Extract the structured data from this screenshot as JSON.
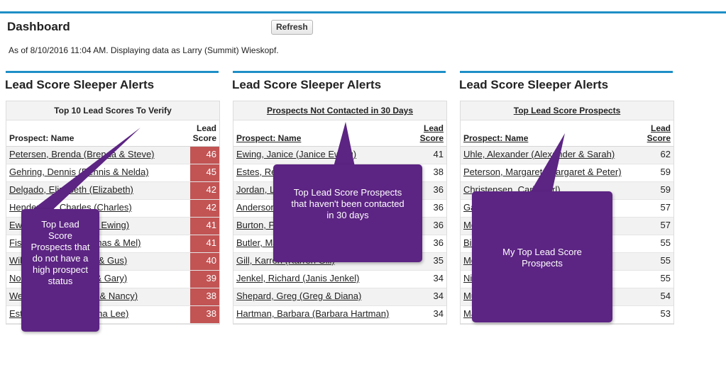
{
  "header": {
    "title": "Dashboard",
    "refresh_label": "Refresh",
    "as_of": "As of 8/10/2016 11:04 AM. Displaying data as Larry (Summit) Wieskopf."
  },
  "columns": [
    {
      "heading": "Lead Score Sleeper Alerts",
      "panel_title": "Top 10 Lead Scores To Verify",
      "name_header": "Prospect: Name",
      "score_header_1": "Lead",
      "score_header_2": "Score",
      "rows": [
        {
          "name": "Petersen, Brenda (Brenda & Steve)",
          "score": "46"
        },
        {
          "name": "Gehring, Dennis (Dennis & Nelda)",
          "score": "45"
        },
        {
          "name": "Delgado, Elizabeth (Elizabeth)",
          "score": "42"
        },
        {
          "name": "Henderson, Charles (Charles)",
          "score": "42"
        },
        {
          "name": "Ewing, Janice (Janice Ewing)",
          "score": "41"
        },
        {
          "name": "Fisher, Thomas (Thomas & Mel)",
          "score": "41"
        },
        {
          "name": "Wilson, Bruce (Bruce & Gus)",
          "score": "40"
        },
        {
          "name": "Norton, Linda (Linda & Gary)",
          "score": "39"
        },
        {
          "name": "Webster, Nancy (Tom & Nancy)",
          "score": "38"
        },
        {
          "name": "Estes, Rex (Rex & Lona Lee)",
          "score": "38"
        }
      ],
      "callout": "Top Lead Score Prospects that do not have a high prospect status"
    },
    {
      "heading": "Lead Score Sleeper Alerts",
      "panel_title": "Prospects Not Contacted in 30 Days",
      "name_header": "Prospect: Name",
      "score_header_1": "Lead",
      "score_header_2": "Score",
      "rows": [
        {
          "name": "Ewing, Janice (Janice Ewing)",
          "score": "41"
        },
        {
          "name": "Estes, Rex (Rex & Lona Lee)",
          "score": "38"
        },
        {
          "name": "Jordan, Linda (Linda Jordan)",
          "score": "36"
        },
        {
          "name": "Anderson, Mark (Mark Anderson)",
          "score": "36"
        },
        {
          "name": "Burton, Paul (Paul Burton)",
          "score": "36"
        },
        {
          "name": "Butler, Mary (Mary Butler)",
          "score": "36"
        },
        {
          "name": "Gill, Karren (Karren Gill)",
          "score": "35"
        },
        {
          "name": "Jenkel, Richard (Janis Jenkel)",
          "score": "34"
        },
        {
          "name": "Shepard, Greg (Greg & Diana)",
          "score": "34"
        },
        {
          "name": "Hartman, Barbara (Barbara Hartman)",
          "score": "34"
        }
      ],
      "callout": "Top Lead Score Prospects that haven't been contacted in 30 days"
    },
    {
      "heading": "Lead Score Sleeper Alerts",
      "panel_title": "Top Lead Score Prospects",
      "name_header": "Prospect: Name",
      "score_header_1": "Lead",
      "score_header_2": "Score",
      "rows": [
        {
          "name": "Uhle, Alexander (Alexander & Sarah)",
          "score": "62"
        },
        {
          "name": "Peterson, Margaret (Margaret & Peter)",
          "score": "59"
        },
        {
          "name": "Christensen, Carl (Carl)",
          "score": "59"
        },
        {
          "name": "Garcia, Ann (Ann Garcia)",
          "score": "57"
        },
        {
          "name": "Morgan, Daniel (Morgan & Dan)",
          "score": "57"
        },
        {
          "name": "Bieler, John (John Bieler)",
          "score": "55"
        },
        {
          "name": "Moore, Steven (Steven & Ann)",
          "score": "55"
        },
        {
          "name": "Niblock, Jean (Jean)",
          "score": "55"
        },
        {
          "name": "Mueller, Duane (Duane & Jan)",
          "score": "54"
        },
        {
          "name": "Martin, John (John & Jeanette)",
          "score": "53"
        }
      ],
      "callout": "My Top Lead Score Prospects"
    }
  ],
  "colors": {
    "accent_bar": "#1e8fc6",
    "score_highlight": "#c25454",
    "callout": "#5c2483"
  }
}
